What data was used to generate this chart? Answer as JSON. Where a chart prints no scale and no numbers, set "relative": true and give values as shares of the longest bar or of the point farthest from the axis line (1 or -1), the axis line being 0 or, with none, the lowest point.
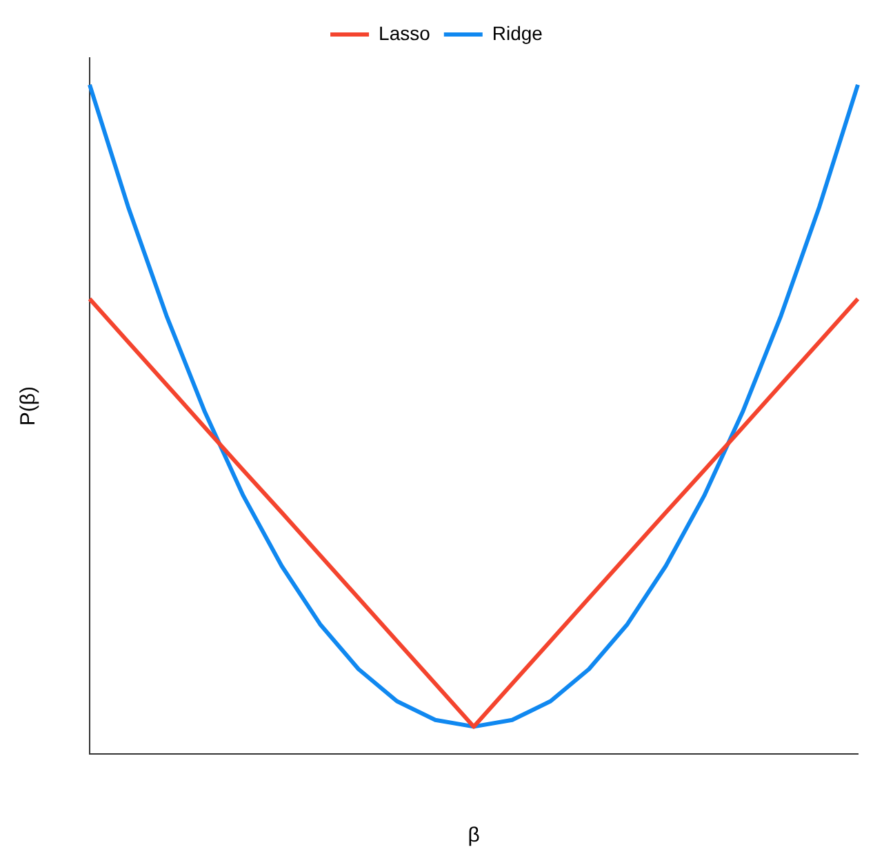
{
  "chart_data": {
    "type": "line",
    "relative": true,
    "xlabel": "β",
    "ylabel": "P(β)",
    "legend": "top",
    "grid": false,
    "marker": "none",
    "line_style": "solid",
    "categories": [
      null,
      null,
      null,
      null,
      null,
      null,
      null,
      null,
      null,
      null,
      null,
      null,
      null,
      null,
      null,
      null,
      null,
      null,
      null,
      null,
      null
    ],
    "series": [
      {
        "name": "Lasso",
        "color": "#f4442e",
        "values": [
          0.68,
          0.616,
          0.552,
          0.488,
          0.424,
          0.361,
          0.297,
          0.233,
          0.169,
          0.105,
          0.041,
          0.105,
          0.169,
          0.233,
          0.297,
          0.361,
          0.424,
          0.488,
          0.552,
          0.616,
          0.68
        ]
      },
      {
        "name": "Ridge",
        "color": "#1088f0",
        "values": [
          1.0,
          0.818,
          0.655,
          0.511,
          0.386,
          0.281,
          0.194,
          0.127,
          0.079,
          0.051,
          0.041,
          0.051,
          0.079,
          0.127,
          0.194,
          0.281,
          0.386,
          0.511,
          0.655,
          0.818,
          1.0
        ]
      }
    ]
  }
}
